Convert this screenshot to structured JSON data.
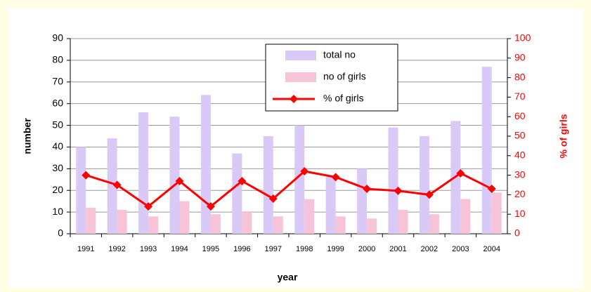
{
  "chart_data": {
    "type": "bar",
    "categories": [
      "1991",
      "1992",
      "1993",
      "1994",
      "1995",
      "1996",
      "1997",
      "1998",
      "1999",
      "2000",
      "2001",
      "2002",
      "2003",
      "2004"
    ],
    "series": [
      {
        "name": "total no",
        "color": "#d9c9f6",
        "values": [
          40,
          44,
          56,
          54,
          64,
          37,
          45,
          50,
          27,
          30,
          49,
          45,
          52,
          77
        ]
      },
      {
        "name": "no of girls",
        "color": "#f6c3d9",
        "values": [
          12,
          11,
          8,
          15,
          9,
          10,
          8,
          16,
          8,
          7,
          11,
          9,
          16,
          19
        ]
      },
      {
        "name": "% of girls",
        "type": "line",
        "axis": "y2",
        "color": "#ff0000",
        "values": [
          30,
          25,
          14,
          27,
          14,
          27,
          18,
          32,
          29,
          23,
          22,
          20,
          31,
          23
        ]
      }
    ],
    "xlabel": "year",
    "ylabel": "number",
    "y2label": "% of girls",
    "ylim": [
      0,
      90
    ],
    "yticks": [
      0,
      10,
      20,
      30,
      40,
      50,
      60,
      70,
      80,
      90
    ],
    "y2lim": [
      0,
      100
    ],
    "y2ticks": [
      0,
      10,
      20,
      30,
      40,
      50,
      60,
      70,
      80,
      90,
      100
    ],
    "y2color": "#ff0000",
    "grid": true,
    "legend": "top"
  }
}
